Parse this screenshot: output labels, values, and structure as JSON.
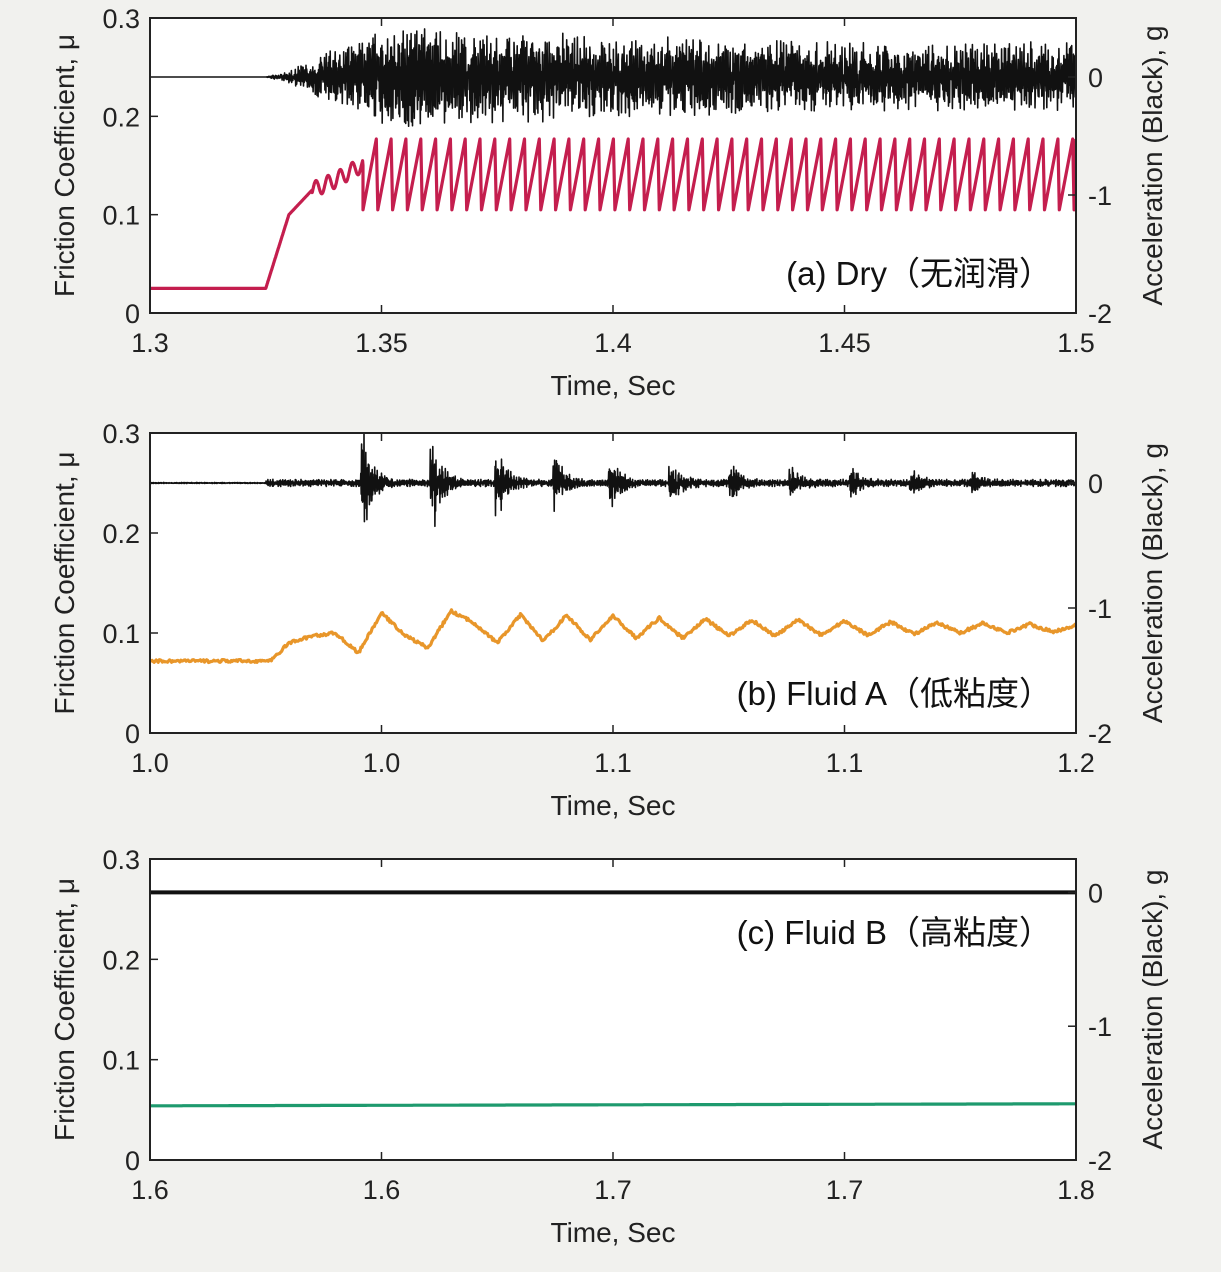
{
  "chart_data": [
    {
      "type": "line",
      "panel": "a",
      "annotation": "(a) Dry（无润滑）",
      "xlabel": "Time, Sec",
      "ylabel_left": "Friction Coefficient, μ",
      "ylabel_right": "Acceleration (Black), g",
      "xticks": [
        "1.3",
        "1.35",
        "1.4",
        "1.45",
        "1.5"
      ],
      "xlim": [
        1.3,
        1.5
      ],
      "ylim_left": [
        0,
        0.3
      ],
      "yticks_left": [
        "0",
        "0.1",
        "0.2",
        "0.3"
      ],
      "ylim_right": [
        -2,
        0.5
      ],
      "yticks_right": [
        "0",
        "-1",
        "-2"
      ],
      "series": [
        {
          "axis": "right",
          "color": "#111111",
          "x": [
            1.3,
            1.325,
            1.33,
            1.335,
            1.34,
            1.345,
            1.35,
            1.4,
            1.45,
            1.5
          ],
          "amplitude": [
            0,
            0,
            0.05,
            0.15,
            0.25,
            0.3,
            0.45,
            0.35,
            0.3,
            0.3
          ]
        },
        {
          "axis": "left",
          "color": "#c41e4e",
          "x": [
            1.3,
            1.325,
            1.33,
            1.335,
            1.34,
            1.3455,
            1.5
          ],
          "y": [
            0.025,
            0.025,
            0.1,
            0.125,
            0.135,
            0.15,
            0.145
          ],
          "sawtooth": {
            "start": 1.346,
            "end": 1.5,
            "period": 0.0032,
            "low": 0.105,
            "high": 0.177
          }
        }
      ]
    },
    {
      "type": "line",
      "panel": "b",
      "annotation": "(b) Fluid A（低粘度）",
      "xlabel": "Time, Sec",
      "ylabel_left": "Friction Coefficient, μ",
      "ylabel_right": "Acceleration (Black), g",
      "xticks": [
        "1.0",
        "1.0",
        "1.1",
        "1.1",
        "1.2"
      ],
      "xlim": [
        1.0,
        1.2
      ],
      "ylim_left": [
        0,
        0.3
      ],
      "yticks_left": [
        "0",
        "0.1",
        "0.2",
        "0.3"
      ],
      "ylim_right": [
        -2,
        0.4
      ],
      "yticks_right": [
        "0",
        "-1",
        "-2"
      ],
      "series": [
        {
          "axis": "right",
          "color": "#111111",
          "baseline": 0,
          "bursts": [
            {
              "x": 1.0465,
              "amp": 0.38
            },
            {
              "x": 1.0615,
              "amp": 0.33
            },
            {
              "x": 1.0755,
              "amp": 0.25
            },
            {
              "x": 1.088,
              "amp": 0.2
            },
            {
              "x": 1.1,
              "amp": 0.18
            },
            {
              "x": 1.113,
              "amp": 0.15
            },
            {
              "x": 1.126,
              "amp": 0.12
            },
            {
              "x": 1.139,
              "amp": 0.1
            },
            {
              "x": 1.152,
              "amp": 0.09
            },
            {
              "x": 1.165,
              "amp": 0.08
            },
            {
              "x": 1.178,
              "amp": 0.06
            }
          ]
        },
        {
          "axis": "left",
          "color": "#e8962a",
          "x": [
            1.0,
            1.026,
            1.03,
            1.035,
            1.04,
            1.045,
            1.05,
            1.055,
            1.06,
            1.065,
            1.07,
            1.075,
            1.08,
            1.085,
            1.09,
            1.095,
            1.1,
            1.105,
            1.11,
            1.115,
            1.12,
            1.125,
            1.13,
            1.135,
            1.14,
            1.145,
            1.15,
            1.155,
            1.16,
            1.165,
            1.17,
            1.175,
            1.18,
            1.185,
            1.19,
            1.195,
            1.2
          ],
          "y": [
            0.072,
            0.072,
            0.09,
            0.097,
            0.1,
            0.08,
            0.12,
            0.098,
            0.085,
            0.122,
            0.11,
            0.09,
            0.118,
            0.092,
            0.118,
            0.093,
            0.117,
            0.095,
            0.115,
            0.095,
            0.114,
            0.097,
            0.113,
            0.097,
            0.113,
            0.098,
            0.112,
            0.098,
            0.111,
            0.099,
            0.11,
            0.1,
            0.11,
            0.1,
            0.109,
            0.101,
            0.108
          ]
        }
      ]
    },
    {
      "type": "line",
      "panel": "c",
      "annotation": "(c) Fluid B（高粘度）",
      "xlabel": "Time, Sec",
      "ylabel_left": "Friction   Coefficient, μ",
      "ylabel_right": "Acceleration (Black), g",
      "xticks": [
        "1.6",
        "1.6",
        "1.7",
        "1.7",
        "1.8"
      ],
      "xlim": [
        1.6,
        1.8
      ],
      "ylim_left": [
        0,
        0.3
      ],
      "yticks_left": [
        "0",
        "0.1",
        "0.2",
        "0.3"
      ],
      "ylim_right": [
        -2,
        0.25
      ],
      "yticks_right": [
        "0",
        "-1",
        "-2"
      ],
      "series": [
        {
          "axis": "right",
          "color": "#111111",
          "x": [
            1.6,
            1.8
          ],
          "y": [
            0,
            0
          ]
        },
        {
          "axis": "left",
          "color": "#1e9a6e",
          "x": [
            1.6,
            1.8
          ],
          "y": [
            0.054,
            0.056
          ]
        }
      ]
    }
  ]
}
